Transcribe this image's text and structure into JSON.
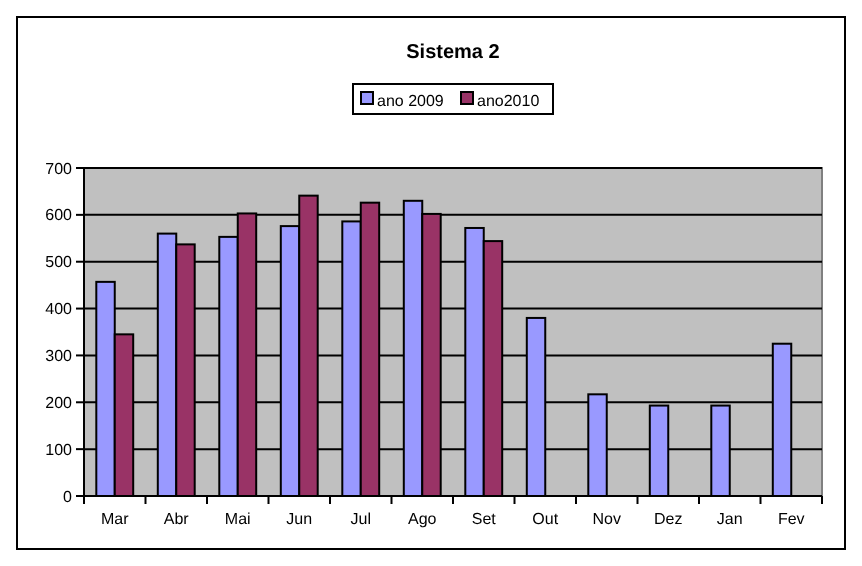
{
  "chart_data": {
    "type": "bar",
    "title": "Sistema 2",
    "categories": [
      "Mar",
      "Abr",
      "Mai",
      "Jun",
      "Jul",
      "Ago",
      "Set",
      "Out",
      "Nov",
      "Dez",
      "Jan",
      "Fev"
    ],
    "series": [
      {
        "name": "ano 2009",
        "color": "#9999ff",
        "values": [
          457,
          560,
          553,
          576,
          586,
          630,
          572,
          380,
          217,
          193,
          193,
          325
        ]
      },
      {
        "name": "ano2010",
        "color": "#993366",
        "values": [
          345,
          537,
          603,
          641,
          626,
          602,
          544,
          null,
          null,
          null,
          null,
          null
        ]
      }
    ],
    "ylim": [
      0,
      700
    ],
    "yticks": [
      0,
      100,
      200,
      300,
      400,
      500,
      600,
      700
    ],
    "grid": "y",
    "legend": "top"
  }
}
